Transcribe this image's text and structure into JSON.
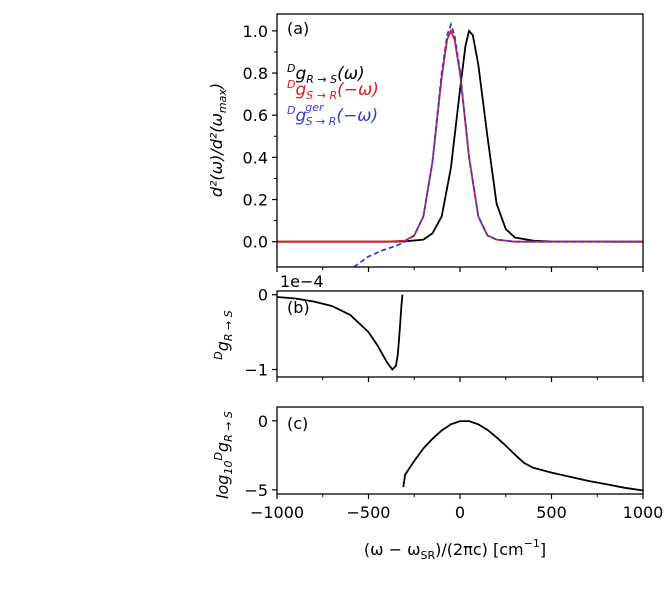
{
  "chart_data": [
    {
      "type": "line",
      "panel_label": "(a)",
      "ylabel": "d²(ω)/d²(ω_max)",
      "xlim": [
        -1000,
        1000
      ],
      "ylim": [
        -0.12,
        1.08
      ],
      "yticks": [
        "0.0",
        "0.2",
        "0.4",
        "0.6",
        "0.8",
        "1.0"
      ],
      "ytick_values": [
        0.0,
        0.2,
        0.4,
        0.6,
        0.8,
        1.0
      ],
      "legend": [
        {
          "text": "ᴰg_{R→S}(ω)",
          "color": "#000000"
        },
        {
          "text": "ᴰg_{S→R}(−ω)",
          "color": "#e41a1c"
        },
        {
          "text": "ᴰg^{ger}_{S→R}(−ω)",
          "color": "#3a3ad6"
        }
      ],
      "series": [
        {
          "color": "#000000",
          "style": "solid",
          "x": [
            -1000,
            -400,
            -300,
            -200,
            -150,
            -100,
            -50,
            0,
            30,
            50,
            70,
            100,
            150,
            200,
            250,
            300,
            400,
            500,
            1000
          ],
          "y": [
            0.0,
            0.0,
            0.002,
            0.01,
            0.04,
            0.12,
            0.35,
            0.72,
            0.93,
            1.0,
            0.98,
            0.84,
            0.5,
            0.18,
            0.06,
            0.02,
            0.005,
            0.001,
            0.0
          ]
        },
        {
          "color": "#e41a1c",
          "style": "solid",
          "x": [
            -1000,
            -400,
            -300,
            -250,
            -200,
            -150,
            -100,
            -70,
            -50,
            -30,
            0,
            50,
            100,
            150,
            200,
            300,
            1000
          ],
          "y": [
            0.0,
            0.0,
            0.005,
            0.03,
            0.12,
            0.38,
            0.78,
            0.96,
            1.0,
            0.96,
            0.8,
            0.4,
            0.12,
            0.03,
            0.01,
            0.0,
            0.0
          ]
        },
        {
          "color": "#3a3ad6",
          "style": "dashed",
          "x": [
            -580,
            -500,
            -420,
            -350,
            -300,
            -250,
            -200,
            -150,
            -100,
            -70,
            -50,
            -30,
            0,
            50,
            100,
            150,
            200,
            300,
            1000
          ],
          "y": [
            -0.12,
            -0.07,
            -0.04,
            -0.02,
            0.0,
            0.03,
            0.12,
            0.38,
            0.8,
            0.98,
            1.03,
            0.98,
            0.81,
            0.4,
            0.12,
            0.03,
            0.01,
            0.0,
            0.0
          ]
        }
      ]
    },
    {
      "type": "line",
      "panel_label": "(b)",
      "ylabel": "ᴰg_{R→S}",
      "offset_text": "1e−4",
      "xlim": [
        -1000,
        1000
      ],
      "ylim": [
        -1.1,
        0.05
      ],
      "yticks": [
        "0",
        "−1"
      ],
      "ytick_values": [
        0,
        -1
      ],
      "series": [
        {
          "color": "#000000",
          "style": "solid",
          "x": [
            -1000,
            -900,
            -800,
            -700,
            -600,
            -500,
            -450,
            -400,
            -370,
            -350,
            -340,
            -330,
            -320,
            -315
          ],
          "y": [
            -0.03,
            -0.05,
            -0.09,
            -0.15,
            -0.27,
            -0.5,
            -0.68,
            -0.9,
            -1.0,
            -0.95,
            -0.8,
            -0.5,
            -0.15,
            0.0
          ]
        }
      ]
    },
    {
      "type": "line",
      "panel_label": "(c)",
      "ylabel": "log₁₀ᴰg_{R→S}",
      "xlabel": "(ω − ω_SR)/(2πc) [cm⁻¹]",
      "xlim": [
        -1000,
        1000
      ],
      "ylim": [
        -5.3,
        1.0
      ],
      "yticks": [
        "0",
        "−5"
      ],
      "ytick_values": [
        0,
        -5
      ],
      "xticks": [
        "−1000",
        "−500",
        "0",
        "500",
        "1000"
      ],
      "xtick_values": [
        -1000,
        -500,
        0,
        500,
        1000
      ],
      "series": [
        {
          "color": "#000000",
          "style": "solid",
          "x": [
            -310,
            -300,
            -250,
            -200,
            -150,
            -100,
            -50,
            0,
            50,
            100,
            150,
            200,
            250,
            300,
            350,
            400,
            500,
            600,
            700,
            800,
            900,
            1000
          ],
          "y": [
            -4.8,
            -3.9,
            -2.9,
            -2.0,
            -1.3,
            -0.7,
            -0.25,
            -0.02,
            -0.02,
            -0.25,
            -0.65,
            -1.2,
            -1.8,
            -2.45,
            -3.05,
            -3.4,
            -3.75,
            -4.05,
            -4.35,
            -4.6,
            -4.85,
            -5.05
          ]
        }
      ]
    }
  ]
}
